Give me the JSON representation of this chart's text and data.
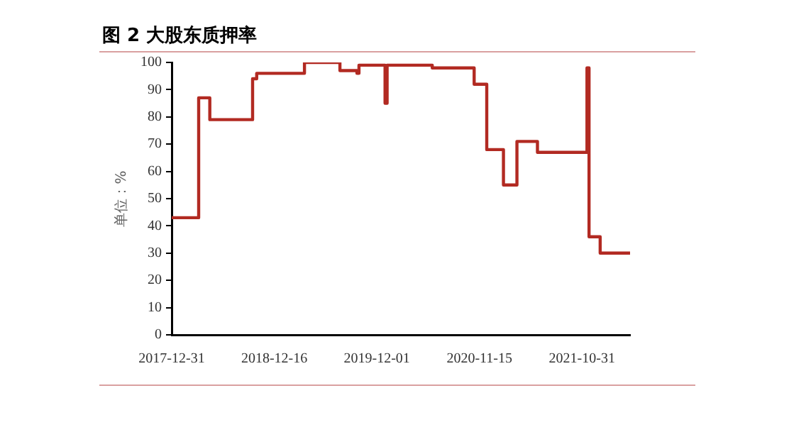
{
  "chart_data": {
    "type": "step",
    "title": "图 2 大股东质押率",
    "ylabel": "单位：%",
    "x": [
      "2017-12-31",
      "2018-04-02",
      "2018-05-10",
      "2018-10-03",
      "2018-10-17",
      "2019-03-29",
      "2019-07-28",
      "2019-09-24",
      "2019-10-01",
      "2019-12-29",
      "2020-01-05",
      "2020-06-07",
      "2020-10-28",
      "2020-12-10",
      "2021-02-05",
      "2021-03-23",
      "2021-06-01",
      "2021-11-17",
      "2021-11-24",
      "2022-01-01",
      "2022-04-13"
    ],
    "series": [
      {
        "color": "#b22a22",
        "values": [
          43,
          87,
          79,
          94,
          96,
          100,
          97,
          96,
          99,
          85,
          99,
          98,
          92,
          68,
          55,
          71,
          67,
          98,
          36,
          30,
          30
        ]
      }
    ],
    "xlim": [
      "2017-12-31",
      "2022-04-13"
    ],
    "xticks": [
      "2017-12-31",
      "2018-12-16",
      "2019-12-01",
      "2020-11-15",
      "2021-10-31"
    ],
    "ylim": [
      0,
      100
    ],
    "yticks": [
      0,
      10,
      20,
      30,
      40,
      50,
      60,
      70,
      80,
      90,
      100
    ],
    "grid": false,
    "legend": false,
    "marker": "none",
    "line_style": "solid"
  }
}
